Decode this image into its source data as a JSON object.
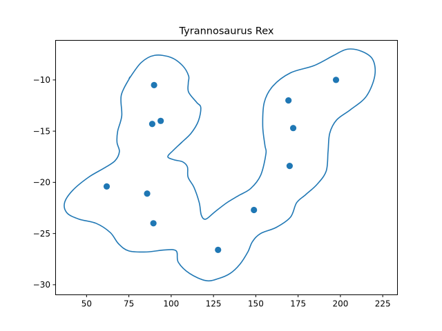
{
  "chart_data": {
    "type": "scatter",
    "title": "Tyrannosaurus Rex",
    "xlabel": "",
    "ylabel": "",
    "xlim": [
      31.5,
      233.5
    ],
    "ylim": [
      -30.95,
      -6.1
    ],
    "xticks": [
      50,
      75,
      100,
      125,
      150,
      175,
      200,
      225
    ],
    "yticks": [
      -10,
      -15,
      -20,
      -25,
      -30
    ],
    "grid": false,
    "color": "#1f77b4",
    "points": {
      "x": [
        89.9,
        88.8,
        93.8,
        61.9,
        85.8,
        89.5,
        127.7,
        148.9,
        169.3,
        172.1,
        170.0,
        197.4
      ],
      "y": [
        -10.5,
        -14.3,
        -14.0,
        -20.4,
        -21.1,
        -24.0,
        -26.6,
        -22.7,
        -12.0,
        -14.7,
        -18.4,
        -10.0
      ]
    },
    "outline": {
      "x": [
        75.5,
        70.5,
        70.8,
        68.4,
        68.0,
        69.4,
        66.8,
        60.5,
        51.2,
        41.7,
        37.0,
        38.5,
        45.6,
        55.6,
        64.0,
        68.9,
        75.0,
        85.5,
        96.4,
        103.0,
        104.2,
        110.9,
        120.6,
        127.9,
        134.8,
        140.6,
        145.3,
        148.0,
        152.8,
        162.1,
        170.5,
        174.1,
        179.5,
        186.2,
        191.6,
        192.7,
        193.7,
        197.8,
        206.0,
        215.3,
        220.3,
        219.1,
        212.5,
        204.0,
        196.1,
        184.4,
        170.6,
        160.1,
        155.0,
        154.1,
        155.4,
        156.0,
        152.9,
        147.0,
        139.8,
        132.8,
        125.7,
        120.4,
        117.8,
        116.6,
        113.5,
        110.0,
        109.6,
        106.8,
        101.7,
        98.0,
        101.1,
        106.2,
        111.8,
        116.1,
        117.5,
        115.1,
        110.3,
        110.1,
        110.3,
        106.7,
        99.8,
        90.2,
        82.3,
        75.5
      ],
      "y": [
        -9.8,
        -11.5,
        -13.5,
        -15.0,
        -16.1,
        -17.0,
        -17.9,
        -18.6,
        -19.5,
        -20.8,
        -22.0,
        -23.0,
        -23.6,
        -24.0,
        -24.9,
        -26.0,
        -26.7,
        -26.8,
        -26.6,
        -26.7,
        -27.8,
        -28.9,
        -29.6,
        -29.4,
        -28.9,
        -28.0,
        -26.8,
        -25.8,
        -25.0,
        -24.4,
        -23.4,
        -22.0,
        -21.2,
        -20.2,
        -18.9,
        -17.0,
        -15.2,
        -13.9,
        -12.9,
        -11.6,
        -9.6,
        -8.0,
        -7.2,
        -7.0,
        -7.6,
        -8.6,
        -9.3,
        -10.6,
        -12.2,
        -14.5,
        -16.4,
        -17.2,
        -19.3,
        -20.6,
        -21.3,
        -22.0,
        -22.9,
        -23.6,
        -23.2,
        -22.0,
        -20.5,
        -19.5,
        -18.5,
        -18.0,
        -17.8,
        -17.5,
        -16.9,
        -16.1,
        -15.2,
        -14.0,
        -12.7,
        -12.2,
        -11.2,
        -10.3,
        -9.6,
        -8.6,
        -7.8,
        -7.6,
        -8.3,
        -9.8
      ]
    }
  }
}
